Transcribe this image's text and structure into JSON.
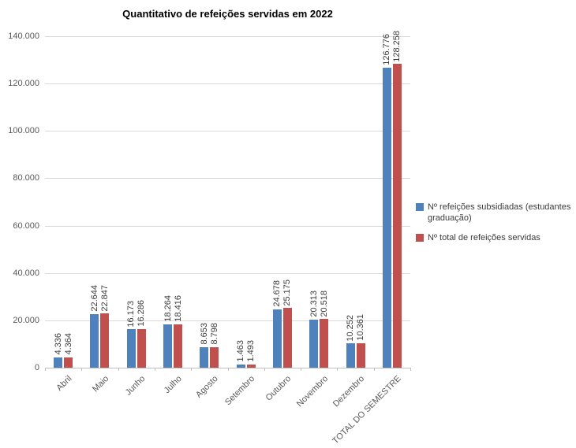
{
  "chart_data": {
    "type": "bar",
    "title": "Quantitativo de refeições servidas em 2022",
    "categories": [
      "Abril",
      "Maio",
      "Junho",
      "Julho",
      "Agosto",
      "Setembro",
      "Outubro",
      "Novembro",
      "Dezembro",
      "TOTAL DO SEMESTRE"
    ],
    "series": [
      {
        "name": "Nº refeições subsidiadas (estudantes graduação)",
        "color": "#4f81bd",
        "values": [
          4336,
          22644,
          16173,
          18264,
          8653,
          1463,
          24678,
          20313,
          10252,
          126776
        ]
      },
      {
        "name": "Nº total de refeições servidas",
        "color": "#c0504d",
        "values": [
          4364,
          22847,
          16286,
          18416,
          8798,
          1493,
          25175,
          20518,
          10361,
          128258
        ]
      }
    ],
    "data_labels": [
      [
        "4.336",
        "22.644",
        "16.173",
        "18.264",
        "8.653",
        "1.463",
        "24.678",
        "20.313",
        "10.252",
        "126.776"
      ],
      [
        "4.364",
        "22.847",
        "16.286",
        "18.416",
        "8.798",
        "1.493",
        "25.175",
        "20.518",
        "10.361",
        "128.258"
      ]
    ],
    "xlabel": "",
    "ylabel": "",
    "ylim": [
      0,
      140000
    ],
    "ytick_step": 20000,
    "ytick_labels": [
      "0",
      "20.000",
      "40.000",
      "60.000",
      "80.000",
      "100.000",
      "120.000",
      "140.000"
    ],
    "grid": true,
    "legend_position": "right",
    "colors": {
      "gridline": "#d9d9d9",
      "axis": "#bfbfbf",
      "axis_text": "#595959",
      "label_text": "#3b3b3b"
    }
  }
}
